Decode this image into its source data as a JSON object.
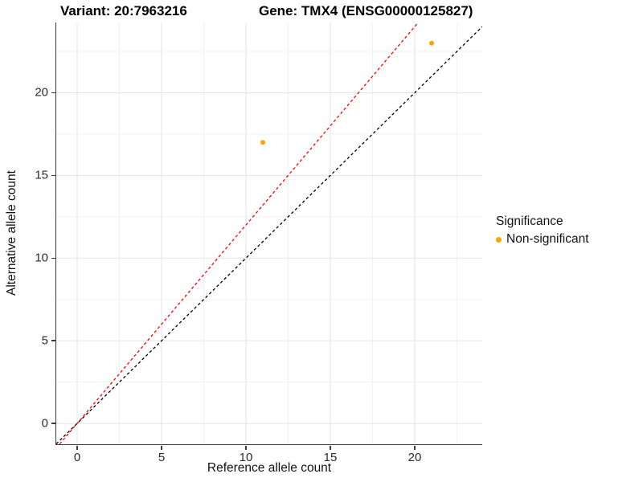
{
  "chart_data": {
    "type": "scatter",
    "title_left": "Variant: 20:7963216",
    "title_right": "Gene: TMX4 (ENSG00000125827)",
    "xlabel": "Reference allele count",
    "ylabel": "Alternative allele count",
    "xlim": [
      -1.24,
      24.0
    ],
    "ylim": [
      -1.26,
      24.25
    ],
    "x_ticks": [
      0,
      5,
      10,
      15,
      20
    ],
    "y_ticks": [
      0,
      5,
      10,
      15,
      20
    ],
    "x_minor_ticks": [
      2.5,
      7.5,
      12.5,
      17.5,
      22.5
    ],
    "y_minor_ticks": [
      2.5,
      7.5,
      12.5,
      17.5,
      22.5
    ],
    "grid": true,
    "points": [
      {
        "x": 11,
        "y": 17,
        "series": "Non-significant"
      },
      {
        "x": 21,
        "y": 23,
        "series": "Non-significant"
      }
    ],
    "point_color": "#FFA500",
    "lines": [
      {
        "name": "identity-line",
        "slope": 1.0,
        "intercept": 0,
        "color": "#000000",
        "dash": true
      },
      {
        "name": "fitted-ratio-line",
        "slope": 1.2,
        "intercept": 0,
        "color": "#FF0000",
        "dash": true
      }
    ],
    "legend": {
      "title": "Significance",
      "position": "right",
      "items": [
        {
          "label": "Non-significant",
          "color": "#FFA500"
        }
      ]
    }
  }
}
